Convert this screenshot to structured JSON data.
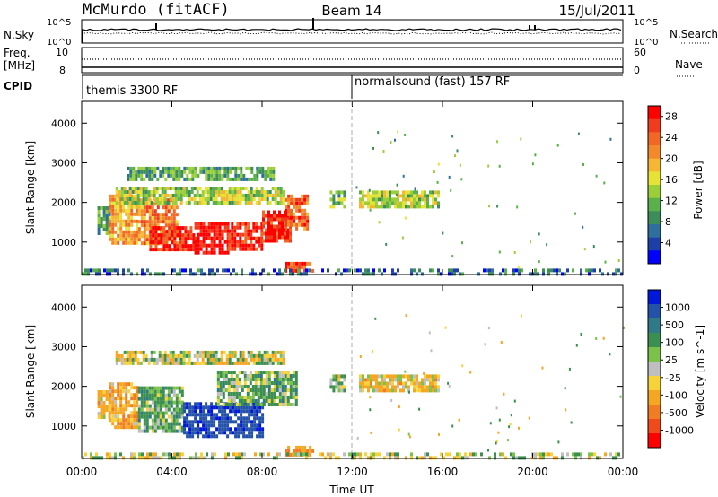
{
  "header": {
    "title": "McMurdo (fitACF)",
    "beam": "Beam 14",
    "date": "15/Jul/2011"
  },
  "strips": {
    "nsky_label": "N.Sky",
    "nsearch_label": "N.Search",
    "nsky_ticks": [
      "10^5",
      "10^0"
    ],
    "nsearch_ticks": [
      "10^5",
      "10^0"
    ],
    "freq_label_1": "Freq.",
    "freq_label_2": "[MHz]",
    "freq_ticks": [
      "10",
      "8"
    ],
    "nave_label": "Nave",
    "nave_ticks": [
      "60",
      "0"
    ],
    "cpid_label": "CPID",
    "cpid_segments": [
      {
        "label": "themis 3300 RF",
        "start_hour": 0
      },
      {
        "label": "normalsound (fast) 157 RF",
        "start_hour": 12
      }
    ]
  },
  "chart_data": [
    {
      "type": "heatmap",
      "panel": "power",
      "ylabel": "Slant Range [km]",
      "xlabel": "",
      "x_ticks": [
        "00:00",
        "04:00",
        "08:00",
        "12:00",
        "16:00",
        "20:00",
        "00:00"
      ],
      "x_range_hours": [
        0,
        24
      ],
      "y_ticks": [
        1000,
        2000,
        3000,
        4000
      ],
      "ylim": [
        180,
        4550
      ],
      "colorbar": {
        "label": "Power [dB]",
        "ticks": [
          4,
          8,
          12,
          16,
          20,
          24,
          28
        ],
        "range": [
          0,
          30
        ],
        "colors": [
          "#0000ff",
          "#1e3fa8",
          "#2e6f9e",
          "#3c8d5a",
          "#5ab04a",
          "#9bcf3a",
          "#e7e336",
          "#f5b633",
          "#f28a2d",
          "#f06726",
          "#ef3c1e",
          "#ff0000"
        ]
      },
      "regions": [
        {
          "t": [
            0.7,
            1.2
          ],
          "r": [
            1200,
            1900
          ],
          "v": 10
        },
        {
          "t": [
            1.2,
            2.5
          ],
          "r": [
            1000,
            2200
          ],
          "v": 20
        },
        {
          "t": [
            2.5,
            4.2
          ],
          "r": [
            1000,
            2100
          ],
          "v": 22
        },
        {
          "t": [
            3.0,
            5.0
          ],
          "r": [
            800,
            1400
          ],
          "v": 28
        },
        {
          "t": [
            5.0,
            6.5
          ],
          "r": [
            750,
            1500
          ],
          "v": 30
        },
        {
          "t": [
            6.5,
            8.0
          ],
          "r": [
            850,
            1500
          ],
          "v": 28
        },
        {
          "t": [
            8.0,
            9.2
          ],
          "r": [
            1000,
            1800
          ],
          "v": 27
        },
        {
          "t": [
            9.0,
            10.0
          ],
          "r": [
            1300,
            2200
          ],
          "v": 24
        },
        {
          "t": [
            1.5,
            9.0
          ],
          "r": [
            2000,
            2400
          ],
          "v": 14
        },
        {
          "t": [
            2.0,
            8.5
          ],
          "r": [
            2600,
            2900
          ],
          "v": 10
        },
        {
          "t": [
            9.0,
            10.2
          ],
          "r": [
            300,
            500
          ],
          "v": 26
        },
        {
          "t": [
            11.0,
            11.6
          ],
          "r": [
            1850,
            2300
          ],
          "v": 12
        },
        {
          "t": [
            12.3,
            15.8
          ],
          "r": [
            1850,
            2300
          ],
          "v": 14
        },
        {
          "t": [
            0.0,
            24.0
          ],
          "r": [
            200,
            330
          ],
          "v": 6
        }
      ]
    },
    {
      "type": "heatmap",
      "panel": "velocity",
      "ylabel": "Slant Range [km]",
      "xlabel": "Time UT",
      "x_ticks": [
        "00:00",
        "04:00",
        "08:00",
        "12:00",
        "16:00",
        "20:00",
        "00:00"
      ],
      "x_range_hours": [
        0,
        24
      ],
      "y_ticks": [
        1000,
        2000,
        3000,
        4000
      ],
      "ylim": [
        180,
        4550
      ],
      "colorbar": {
        "label": "Velocity [m s^-1]",
        "ticks": [
          1000,
          500,
          100,
          25,
          -25,
          -100,
          -500,
          -1000
        ],
        "colors": [
          "#0018d8",
          "#2452a8",
          "#2f7a86",
          "#3b8f50",
          "#7cc24a",
          "#bfbfbf",
          "#f7d33a",
          "#f5a623",
          "#f07d23",
          "#ee4a1c",
          "#ff0000"
        ]
      },
      "regions": [
        {
          "t": [
            0.7,
            1.2
          ],
          "r": [
            1200,
            1900
          ],
          "v": -150
        },
        {
          "t": [
            1.2,
            2.5
          ],
          "r": [
            1000,
            2100
          ],
          "v": -200
        },
        {
          "t": [
            2.5,
            4.5
          ],
          "r": [
            900,
            2000
          ],
          "v": 150
        },
        {
          "t": [
            4.5,
            8.0
          ],
          "r": [
            750,
            1600
          ],
          "v": 900
        },
        {
          "t": [
            6.0,
            9.5
          ],
          "r": [
            1500,
            2400
          ],
          "v": 120
        },
        {
          "t": [
            1.5,
            9.0
          ],
          "r": [
            2600,
            2900
          ],
          "v": -10
        },
        {
          "t": [
            9.0,
            10.2
          ],
          "r": [
            300,
            500
          ],
          "v": -300
        },
        {
          "t": [
            11.0,
            11.6
          ],
          "r": [
            1850,
            2300
          ],
          "v": 40
        },
        {
          "t": [
            12.3,
            15.8
          ],
          "r": [
            1850,
            2300
          ],
          "v": -120
        },
        {
          "t": [
            0.0,
            24.0
          ],
          "r": [
            200,
            330
          ],
          "v": 20
        }
      ]
    }
  ]
}
